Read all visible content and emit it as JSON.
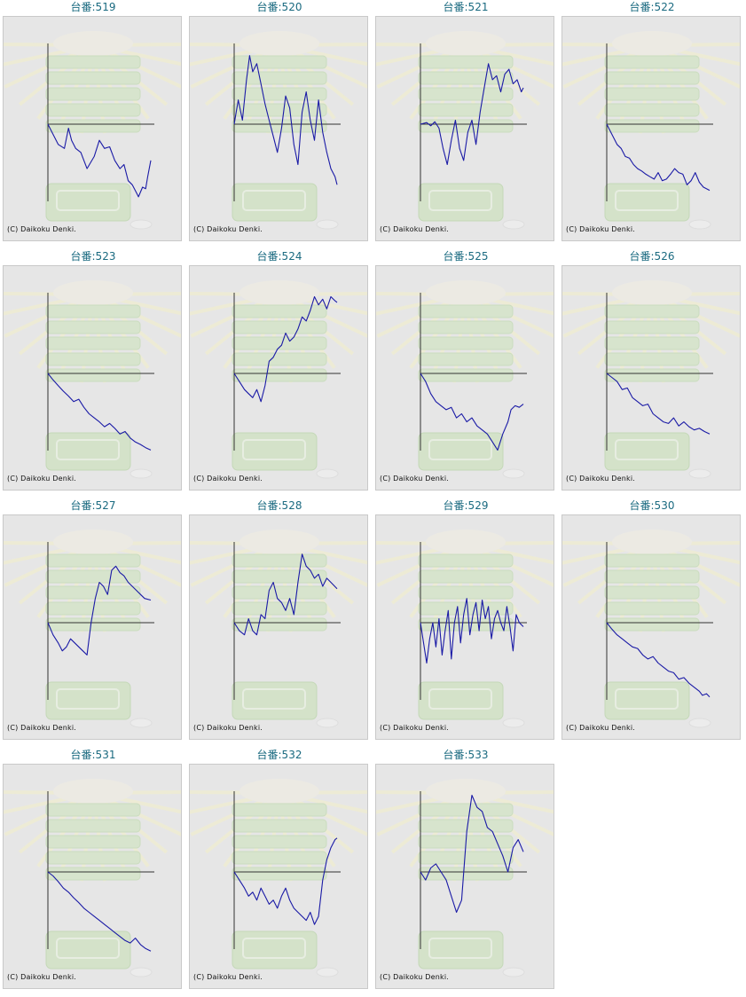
{
  "page": {
    "copyright": "(C) Daikoku Denki."
  },
  "colors": {
    "line": "#1a1aa6",
    "axis": "#333333",
    "title": "#1a6a80",
    "panel_bg": "#e6e6e6",
    "watermark": "#cfe5c0"
  },
  "chart_data": [
    {
      "type": "line",
      "title": "台番:519",
      "y_range": [
        -1,
        1
      ],
      "x_range": [
        0,
        1
      ],
      "x": [
        0,
        0.06,
        0.1,
        0.16,
        0.2,
        0.23,
        0.27,
        0.32,
        0.38,
        0.45,
        0.5,
        0.55,
        0.6,
        0.65,
        0.7,
        0.74,
        0.78,
        0.82,
        0.86,
        0.88,
        0.92,
        0.95,
        0.97,
        1.0
      ],
      "y": [
        0,
        -0.15,
        -0.25,
        -0.3,
        -0.05,
        -0.2,
        -0.3,
        -0.35,
        -0.55,
        -0.4,
        -0.2,
        -0.3,
        -0.28,
        -0.45,
        -0.55,
        -0.5,
        -0.7,
        -0.75,
        -0.85,
        -0.9,
        -0.78,
        -0.8,
        -0.65,
        -0.45
      ]
    },
    {
      "type": "line",
      "title": "台番:520",
      "y_range": [
        -1,
        1
      ],
      "x_range": [
        0,
        1
      ],
      "x": [
        0,
        0.04,
        0.08,
        0.12,
        0.15,
        0.18,
        0.22,
        0.26,
        0.3,
        0.34,
        0.38,
        0.42,
        0.46,
        0.5,
        0.54,
        0.58,
        0.62,
        0.66,
        0.7,
        0.74,
        0.78,
        0.82,
        0.86,
        0.9,
        0.94,
        0.98,
        1.0
      ],
      "y": [
        0,
        0.3,
        0.05,
        0.55,
        0.85,
        0.65,
        0.75,
        0.5,
        0.25,
        0.05,
        -0.15,
        -0.35,
        -0.05,
        0.35,
        0.2,
        -0.25,
        -0.5,
        0.15,
        0.4,
        0.05,
        -0.2,
        0.3,
        -0.1,
        -0.35,
        -0.55,
        -0.65,
        -0.75
      ]
    },
    {
      "type": "line",
      "title": "台番:521",
      "y_range": [
        -1,
        1
      ],
      "x_range": [
        0,
        1
      ],
      "x": [
        0,
        0.06,
        0.1,
        0.14,
        0.18,
        0.22,
        0.26,
        0.3,
        0.34,
        0.38,
        0.42,
        0.46,
        0.5,
        0.54,
        0.58,
        0.62,
        0.66,
        0.7,
        0.74,
        0.78,
        0.82,
        0.86,
        0.9,
        0.94,
        0.98,
        1.0
      ],
      "y": [
        0,
        0.02,
        -0.02,
        0.03,
        -0.05,
        -0.3,
        -0.5,
        -0.2,
        0.05,
        -0.3,
        -0.45,
        -0.1,
        0.05,
        -0.25,
        0.15,
        0.45,
        0.75,
        0.55,
        0.6,
        0.4,
        0.62,
        0.68,
        0.5,
        0.55,
        0.4,
        0.45
      ]
    },
    {
      "type": "line",
      "title": "台番:522",
      "y_range": [
        -1,
        1
      ],
      "x_range": [
        0,
        1
      ],
      "x": [
        0,
        0.06,
        0.1,
        0.14,
        0.18,
        0.22,
        0.26,
        0.3,
        0.34,
        0.38,
        0.42,
        0.46,
        0.5,
        0.54,
        0.58,
        0.62,
        0.66,
        0.7,
        0.74,
        0.78,
        0.82,
        0.86,
        0.9,
        0.94,
        1.0
      ],
      "y": [
        0,
        -0.15,
        -0.25,
        -0.3,
        -0.4,
        -0.42,
        -0.5,
        -0.55,
        -0.58,
        -0.62,
        -0.65,
        -0.68,
        -0.6,
        -0.7,
        -0.68,
        -0.62,
        -0.55,
        -0.6,
        -0.62,
        -0.75,
        -0.7,
        -0.6,
        -0.72,
        -0.78,
        -0.82
      ]
    },
    {
      "type": "line",
      "title": "台番:523",
      "y_range": [
        -1,
        1
      ],
      "x_range": [
        0,
        1
      ],
      "x": [
        0,
        0.05,
        0.1,
        0.15,
        0.2,
        0.25,
        0.3,
        0.35,
        0.4,
        0.45,
        0.5,
        0.55,
        0.6,
        0.65,
        0.7,
        0.75,
        0.8,
        0.85,
        0.9,
        0.95,
        1.0
      ],
      "y": [
        0,
        -0.08,
        -0.15,
        -0.22,
        -0.28,
        -0.35,
        -0.32,
        -0.42,
        -0.5,
        -0.55,
        -0.6,
        -0.66,
        -0.62,
        -0.68,
        -0.75,
        -0.72,
        -0.8,
        -0.85,
        -0.88,
        -0.92,
        -0.95
      ]
    },
    {
      "type": "line",
      "title": "台番:524",
      "y_range": [
        -1,
        1
      ],
      "x_range": [
        0,
        1
      ],
      "x": [
        0,
        0.05,
        0.1,
        0.14,
        0.18,
        0.22,
        0.26,
        0.3,
        0.34,
        0.38,
        0.42,
        0.46,
        0.5,
        0.54,
        0.58,
        0.62,
        0.66,
        0.7,
        0.74,
        0.78,
        0.82,
        0.86,
        0.9,
        0.94,
        0.98,
        1.0
      ],
      "y": [
        0,
        -0.1,
        -0.2,
        -0.25,
        -0.3,
        -0.2,
        -0.35,
        -0.15,
        0.15,
        0.2,
        0.3,
        0.35,
        0.5,
        0.4,
        0.45,
        0.55,
        0.7,
        0.65,
        0.78,
        0.95,
        0.85,
        0.92,
        0.8,
        0.95,
        0.9,
        0.88
      ]
    },
    {
      "type": "line",
      "title": "台番:525",
      "y_range": [
        -1,
        1
      ],
      "x_range": [
        0,
        1
      ],
      "x": [
        0,
        0.05,
        0.1,
        0.15,
        0.2,
        0.25,
        0.3,
        0.35,
        0.4,
        0.45,
        0.5,
        0.55,
        0.6,
        0.65,
        0.7,
        0.75,
        0.8,
        0.85,
        0.88,
        0.92,
        0.96,
        1.0
      ],
      "y": [
        0,
        -0.1,
        -0.25,
        -0.35,
        -0.4,
        -0.45,
        -0.42,
        -0.55,
        -0.5,
        -0.6,
        -0.55,
        -0.65,
        -0.7,
        -0.75,
        -0.85,
        -0.95,
        -0.75,
        -0.6,
        -0.45,
        -0.4,
        -0.42,
        -0.38
      ]
    },
    {
      "type": "line",
      "title": "台番:526",
      "y_range": [
        -1,
        1
      ],
      "x_range": [
        0,
        1
      ],
      "x": [
        0,
        0.05,
        0.1,
        0.15,
        0.2,
        0.25,
        0.3,
        0.35,
        0.4,
        0.45,
        0.5,
        0.55,
        0.6,
        0.65,
        0.7,
        0.75,
        0.8,
        0.85,
        0.9,
        0.95,
        1.0
      ],
      "y": [
        0,
        -0.05,
        -0.1,
        -0.2,
        -0.18,
        -0.3,
        -0.35,
        -0.4,
        -0.38,
        -0.5,
        -0.55,
        -0.6,
        -0.62,
        -0.55,
        -0.65,
        -0.6,
        -0.66,
        -0.7,
        -0.68,
        -0.72,
        -0.75
      ]
    },
    {
      "type": "line",
      "title": "台番:527",
      "y_range": [
        -1,
        1
      ],
      "x_range": [
        0,
        1
      ],
      "x": [
        0,
        0.05,
        0.1,
        0.14,
        0.18,
        0.22,
        0.26,
        0.3,
        0.34,
        0.38,
        0.42,
        0.46,
        0.5,
        0.54,
        0.58,
        0.62,
        0.66,
        0.7,
        0.74,
        0.78,
        0.82,
        0.86,
        0.9,
        0.94,
        1.0
      ],
      "y": [
        0,
        -0.15,
        -0.25,
        -0.35,
        -0.3,
        -0.2,
        -0.25,
        -0.3,
        -0.35,
        -0.4,
        0.0,
        0.3,
        0.5,
        0.45,
        0.35,
        0.65,
        0.7,
        0.62,
        0.58,
        0.5,
        0.45,
        0.4,
        0.35,
        0.3,
        0.28
      ]
    },
    {
      "type": "line",
      "title": "台番:528",
      "y_range": [
        -1,
        1
      ],
      "x_range": [
        0,
        1
      ],
      "x": [
        0,
        0.05,
        0.1,
        0.14,
        0.18,
        0.22,
        0.26,
        0.3,
        0.34,
        0.38,
        0.42,
        0.46,
        0.5,
        0.54,
        0.58,
        0.62,
        0.66,
        0.7,
        0.74,
        0.78,
        0.82,
        0.86,
        0.9,
        0.94,
        1.0
      ],
      "y": [
        0,
        -0.1,
        -0.15,
        0.05,
        -0.1,
        -0.15,
        0.1,
        0.05,
        0.4,
        0.5,
        0.3,
        0.25,
        0.15,
        0.3,
        0.1,
        0.5,
        0.85,
        0.7,
        0.65,
        0.55,
        0.6,
        0.45,
        0.55,
        0.5,
        0.42
      ]
    },
    {
      "type": "line",
      "title": "台番:529",
      "y_range": [
        -1,
        1
      ],
      "x_range": [
        0,
        1
      ],
      "x": [
        0,
        0.03,
        0.06,
        0.09,
        0.12,
        0.15,
        0.18,
        0.21,
        0.24,
        0.27,
        0.3,
        0.33,
        0.36,
        0.39,
        0.42,
        0.45,
        0.48,
        0.51,
        0.54,
        0.57,
        0.6,
        0.63,
        0.66,
        0.69,
        0.72,
        0.75,
        0.78,
        0.81,
        0.84,
        0.87,
        0.9,
        0.93,
        0.96,
        1.0
      ],
      "y": [
        0,
        -0.25,
        -0.5,
        -0.2,
        0.0,
        -0.3,
        0.05,
        -0.4,
        -0.1,
        0.15,
        -0.45,
        0.0,
        0.2,
        -0.25,
        0.1,
        0.3,
        -0.15,
        0.1,
        0.25,
        -0.1,
        0.28,
        0.05,
        0.2,
        -0.2,
        0.05,
        0.15,
        0.0,
        -0.1,
        0.2,
        -0.05,
        -0.35,
        0.1,
        0.0,
        -0.05
      ]
    },
    {
      "type": "line",
      "title": "台番:530",
      "y_range": [
        -1,
        1
      ],
      "x_range": [
        0,
        1
      ],
      "x": [
        0,
        0.05,
        0.1,
        0.15,
        0.2,
        0.25,
        0.3,
        0.35,
        0.4,
        0.45,
        0.5,
        0.55,
        0.6,
        0.65,
        0.7,
        0.75,
        0.8,
        0.85,
        0.9,
        0.93,
        0.97,
        1.0
      ],
      "y": [
        0,
        -0.08,
        -0.15,
        -0.2,
        -0.25,
        -0.3,
        -0.32,
        -0.4,
        -0.45,
        -0.42,
        -0.5,
        -0.55,
        -0.6,
        -0.62,
        -0.7,
        -0.68,
        -0.75,
        -0.8,
        -0.85,
        -0.9,
        -0.88,
        -0.92
      ]
    },
    {
      "type": "line",
      "title": "台番:531",
      "y_range": [
        -1,
        1
      ],
      "x_range": [
        0,
        1
      ],
      "x": [
        0,
        0.05,
        0.1,
        0.15,
        0.2,
        0.25,
        0.3,
        0.35,
        0.4,
        0.45,
        0.5,
        0.55,
        0.6,
        0.65,
        0.7,
        0.75,
        0.8,
        0.85,
        0.9,
        0.95,
        1.0
      ],
      "y": [
        0,
        -0.05,
        -0.12,
        -0.2,
        -0.25,
        -0.32,
        -0.38,
        -0.45,
        -0.5,
        -0.55,
        -0.6,
        -0.65,
        -0.7,
        -0.75,
        -0.8,
        -0.85,
        -0.88,
        -0.82,
        -0.9,
        -0.95,
        -0.98
      ]
    },
    {
      "type": "line",
      "title": "台番:532",
      "y_range": [
        -1,
        1
      ],
      "x_range": [
        0,
        1
      ],
      "x": [
        0,
        0.05,
        0.1,
        0.14,
        0.18,
        0.22,
        0.26,
        0.3,
        0.34,
        0.38,
        0.42,
        0.46,
        0.5,
        0.54,
        0.58,
        0.62,
        0.66,
        0.7,
        0.74,
        0.78,
        0.82,
        0.86,
        0.9,
        0.94,
        0.98,
        1.0
      ],
      "y": [
        0,
        -0.1,
        -0.2,
        -0.3,
        -0.25,
        -0.35,
        -0.2,
        -0.3,
        -0.4,
        -0.35,
        -0.45,
        -0.3,
        -0.2,
        -0.35,
        -0.45,
        -0.5,
        -0.55,
        -0.6,
        -0.5,
        -0.65,
        -0.55,
        -0.1,
        0.15,
        0.3,
        0.4,
        0.42
      ]
    },
    {
      "type": "line",
      "title": "台番:533",
      "y_range": [
        -1,
        1
      ],
      "x_range": [
        0,
        1
      ],
      "x": [
        0,
        0.05,
        0.1,
        0.15,
        0.2,
        0.25,
        0.3,
        0.35,
        0.4,
        0.45,
        0.5,
        0.55,
        0.6,
        0.65,
        0.7,
        0.75,
        0.8,
        0.85,
        0.9,
        0.95,
        1.0
      ],
      "y": [
        0,
        -0.1,
        0.05,
        0.1,
        0.0,
        -0.1,
        -0.3,
        -0.5,
        -0.35,
        0.5,
        0.95,
        0.8,
        0.75,
        0.55,
        0.5,
        0.35,
        0.2,
        0.0,
        0.3,
        0.4,
        0.25
      ]
    }
  ]
}
